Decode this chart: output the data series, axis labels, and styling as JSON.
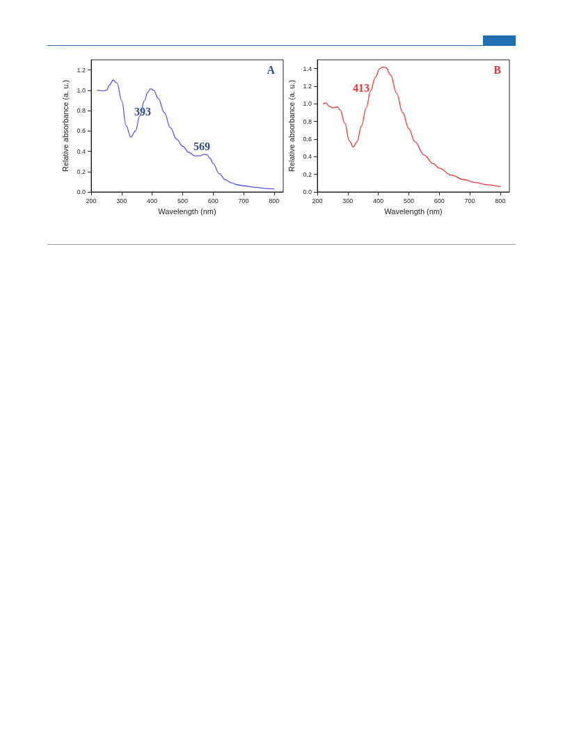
{
  "chart_data": [
    {
      "type": "line",
      "xlabel": "Wavelength (nm)",
      "ylabel": "Relative absorbance (a. u.)",
      "xlim": [
        200,
        830
      ],
      "ylim": [
        0,
        1.3
      ],
      "xticks": [
        200,
        300,
        400,
        500,
        600,
        700,
        800
      ],
      "yticks": [
        {
          "value": 0,
          "label": "0.0"
        },
        {
          "value": 0.2,
          "label": "0.2"
        },
        {
          "value": 0.4,
          "label": "0.4"
        },
        {
          "value": 0.6,
          "label": "0.6"
        },
        {
          "value": 0.8,
          "label": "0.8"
        },
        {
          "value": 1,
          "label": "1.0"
        },
        {
          "value": 1.2,
          "label": "1.2"
        }
      ],
      "grid": false,
      "marker": "none",
      "line_style": "solid",
      "annotations": [
        "A",
        "393",
        "569"
      ],
      "series": [
        {
          "color": "#5555ee",
          "x": [
            220,
            240,
            250,
            260,
            272,
            285,
            300,
            315,
            330,
            345,
            360,
            375,
            385,
            395,
            405,
            420,
            440,
            460,
            480,
            500,
            520,
            540,
            555,
            570,
            580,
            590,
            600,
            620,
            640,
            660,
            680,
            700,
            740,
            780,
            800
          ],
          "values": [
            1.0,
            0.995,
            1.0,
            1.05,
            1.1,
            1.07,
            0.9,
            0.65,
            0.54,
            0.6,
            0.75,
            0.9,
            0.98,
            1.015,
            1.0,
            0.92,
            0.78,
            0.63,
            0.52,
            0.45,
            0.39,
            0.355,
            0.355,
            0.37,
            0.365,
            0.33,
            0.28,
            0.18,
            0.12,
            0.09,
            0.07,
            0.06,
            0.045,
            0.032,
            0.03
          ]
        }
      ]
    },
    {
      "type": "line",
      "xlabel": "Wavelength (nm)",
      "ylabel": "Relative absorbance (a. u.)",
      "xlim": [
        200,
        830
      ],
      "ylim": [
        0,
        1.5
      ],
      "xticks": [
        200,
        300,
        400,
        500,
        600,
        700,
        800
      ],
      "yticks": [
        {
          "value": 0,
          "label": "0.0"
        },
        {
          "value": 0.2,
          "label": "0.2"
        },
        {
          "value": 0.4,
          "label": "0.4"
        },
        {
          "value": 0.6,
          "label": "0.6"
        },
        {
          "value": 0.8,
          "label": "0.8"
        },
        {
          "value": 1,
          "label": "1.0"
        },
        {
          "value": 1.2,
          "label": "1.2"
        },
        {
          "value": 1.4,
          "label": "1.4"
        }
      ],
      "grid": false,
      "marker": "none",
      "line_style": "solid",
      "annotations": [
        "B",
        "413"
      ],
      "series": [
        {
          "color": "#ee3333",
          "x": [
            220,
            228,
            240,
            250,
            265,
            275,
            290,
            305,
            318,
            330,
            345,
            360,
            375,
            390,
            405,
            415,
            425,
            440,
            460,
            480,
            500,
            520,
            550,
            580,
            600,
            640,
            680,
            720,
            760,
            800
          ],
          "values": [
            1.0,
            1.01,
            0.97,
            0.955,
            0.965,
            0.93,
            0.78,
            0.58,
            0.51,
            0.57,
            0.75,
            0.95,
            1.15,
            1.3,
            1.4,
            1.42,
            1.41,
            1.33,
            1.12,
            0.9,
            0.72,
            0.57,
            0.42,
            0.32,
            0.27,
            0.19,
            0.14,
            0.105,
            0.08,
            0.06
          ]
        }
      ]
    }
  ]
}
